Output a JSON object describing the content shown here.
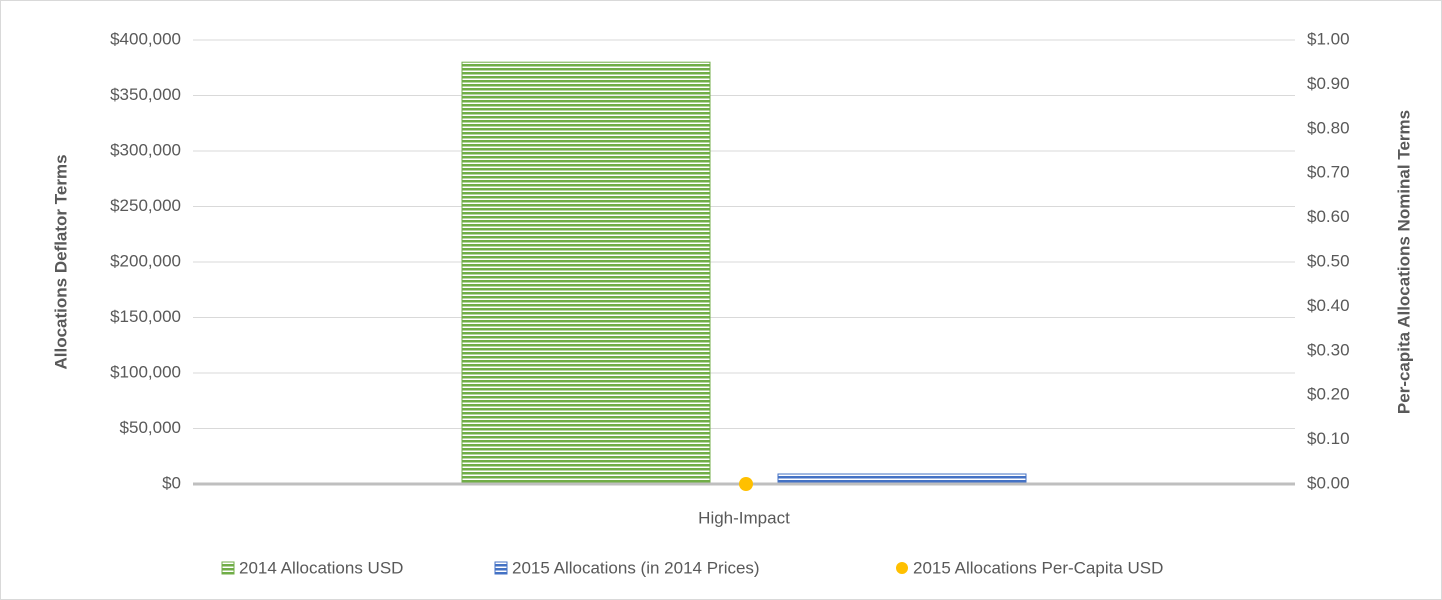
{
  "chart_data": {
    "type": "bar",
    "categories": [
      "High-Impact"
    ],
    "series": [
      {
        "name": "2014 Allocations USD",
        "color": "#70ad47",
        "values": [
          380000
        ]
      },
      {
        "name": "2015 Allocations (in 2014 Prices)",
        "color": "#4472c4",
        "values": [
          9000
        ]
      },
      {
        "name": "2015 Allocations Per-Capita USD",
        "color": "#ffc000",
        "values": [
          0
        ],
        "axis": "y2",
        "type": "scatter"
      }
    ],
    "ylabel": "Allocations Deflator Terms",
    "y2label": "Per-capita Allocations Nominal Terms",
    "ylim": [
      0,
      400000
    ],
    "yticks": [
      {
        "value": 0,
        "label": "$0"
      },
      {
        "value": 50000,
        "label": "$50,000"
      },
      {
        "value": 100000,
        "label": "$100,000"
      },
      {
        "value": 150000,
        "label": "$150,000"
      },
      {
        "value": 200000,
        "label": "$200,000"
      },
      {
        "value": 250000,
        "label": "$250,000"
      },
      {
        "value": 300000,
        "label": "$300,000"
      },
      {
        "value": 350000,
        "label": "$350,000"
      },
      {
        "value": 400000,
        "label": "$400,000"
      }
    ],
    "y2lim": [
      0,
      1
    ],
    "y2ticks": [
      {
        "value": 0,
        "label": "$0.00"
      },
      {
        "value": 0.1,
        "label": "$0.10"
      },
      {
        "value": 0.2,
        "label": "$0.20"
      },
      {
        "value": 0.3,
        "label": "$0.30"
      },
      {
        "value": 0.4,
        "label": "$0.40"
      },
      {
        "value": 0.5,
        "label": "$0.50"
      },
      {
        "value": 0.6,
        "label": "$0.60"
      },
      {
        "value": 0.7,
        "label": "$0.70"
      },
      {
        "value": 0.8,
        "label": "$0.80"
      },
      {
        "value": 0.9,
        "label": "$0.90"
      },
      {
        "value": 1,
        "label": "$1.00"
      }
    ],
    "grid": true,
    "legend": "bottom"
  }
}
